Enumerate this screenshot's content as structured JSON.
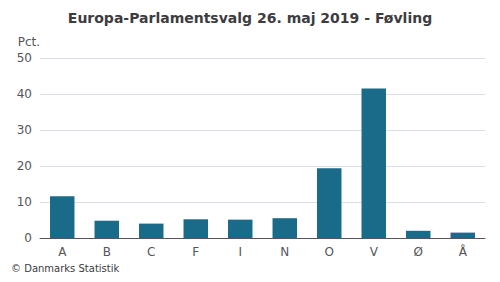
{
  "chart_data": {
    "type": "bar",
    "title": "Europa-Parlamentsvalg 26. maj 2019 - Føvling",
    "footer": "© Danmarks Statistik",
    "ylabel": "Pct.",
    "categories": [
      "A",
      "B",
      "C",
      "F",
      "I",
      "N",
      "O",
      "V",
      "Ø",
      "Å"
    ],
    "values": [
      11.6,
      4.8,
      4.0,
      5.2,
      5.1,
      5.5,
      19.4,
      41.5,
      2.0,
      1.5
    ],
    "color": "#1a6b8a",
    "ylim": [
      0,
      50
    ],
    "yticks": [
      0,
      10,
      20,
      30,
      40,
      50
    ],
    "grid": true
  }
}
